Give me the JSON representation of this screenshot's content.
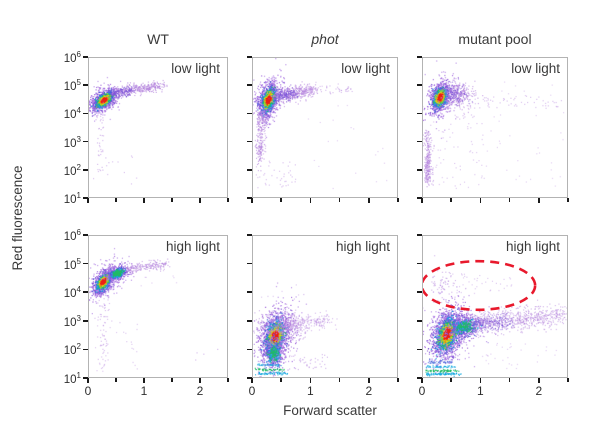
{
  "figure": {
    "xaxis_label": "Forward scatter",
    "yaxis_label": "Red fluorescence"
  },
  "chart_data": {
    "type": "scatter",
    "title": "",
    "xlabel": "Forward scatter",
    "ylabel": "Red fluorescence",
    "layout": {
      "rows": 2,
      "cols": 3,
      "grid": false,
      "legend": "none"
    },
    "xlim": [
      0,
      2.5
    ],
    "x_ticks": [
      0,
      0.5,
      1,
      1.5,
      2,
      2.5
    ],
    "x_tick_labeled": [
      0,
      1,
      2
    ],
    "ylog_limits": [
      1,
      6
    ],
    "y_tick_exponents": [
      6,
      5,
      4,
      3,
      2,
      1
    ],
    "col_titles": [
      {
        "text": "WT",
        "italic": false
      },
      {
        "text": "phot",
        "italic": true
      },
      {
        "text": "mutant pool",
        "italic": false
      }
    ],
    "row_labels": [
      "low light",
      "high light"
    ],
    "sparse_color": "#b585dd",
    "density_layers": [
      {
        "color": "#c09aea",
        "scale": 1.6,
        "frac": 0.06
      },
      {
        "color": "#a873e0",
        "scale": 1.0,
        "frac": 0.26
      },
      {
        "color": "#7e57d9",
        "scale": 0.8,
        "frac": 0.12
      },
      {
        "color": "#3f63d8",
        "scale": 0.65,
        "frac": 0.1
      },
      {
        "color": "#16aadf",
        "scale": 0.53,
        "frac": 0.1
      },
      {
        "color": "#21bb66",
        "scale": 0.43,
        "frac": 0.1
      },
      {
        "color": "#a8d62a",
        "scale": 0.345,
        "frac": 0.08
      },
      {
        "color": "#f2cf11",
        "scale": 0.275,
        "frac": 0.06
      },
      {
        "color": "#f58414",
        "scale": 0.215,
        "frac": 0.06
      },
      {
        "color": "#ec2218",
        "scale": 0.155,
        "frac": 0.16
      }
    ],
    "panels": [
      {
        "row": 0,
        "col": 0,
        "condition": "low light",
        "genotype": "WT",
        "populations": [
          {
            "type": "dense",
            "x": 0.27,
            "y": 4.48,
            "major": 8,
            "minor": 4.4,
            "rot": 38,
            "n": 2600
          },
          {
            "type": "band",
            "x0": 0.5,
            "y0": 4.78,
            "x1": 1.32,
            "y1": 5.0,
            "spread": 3,
            "n": 330,
            "alpha": 0.65
          },
          {
            "type": "band",
            "x0": 0.42,
            "y0": 4.7,
            "x1": 0.75,
            "y1": 4.85,
            "spread": 3,
            "n": 140,
            "color": "#7e57d9",
            "alpha": 0.6
          },
          {
            "type": "gauss",
            "x": 0.2,
            "y": 3.3,
            "sx": 2,
            "sy": 22,
            "n": 45,
            "alpha": 0.5
          },
          {
            "type": "uniform",
            "x0": 0.08,
            "x1": 0.9,
            "y0": 1.35,
            "y1": 2.6,
            "n": 14,
            "alpha": 0.45
          }
        ]
      },
      {
        "row": 0,
        "col": 1,
        "condition": "low light",
        "genotype": "phot",
        "populations": [
          {
            "type": "dense",
            "x": 0.27,
            "y": 4.5,
            "major": 9.5,
            "minor": 5,
            "rot": 72,
            "n": 2700
          },
          {
            "type": "band",
            "x0": 0.4,
            "y0": 4.62,
            "x1": 1.05,
            "y1": 4.85,
            "spread": 4.5,
            "n": 420,
            "alpha": 0.6
          },
          {
            "type": "band",
            "x0": 0.38,
            "y0": 4.58,
            "x1": 0.72,
            "y1": 4.75,
            "spread": 3.5,
            "n": 160,
            "color": "#7e57d9",
            "alpha": 0.55
          },
          {
            "type": "band",
            "x0": 1.0,
            "y0": 4.85,
            "x1": 1.7,
            "y1": 4.9,
            "spread": 3,
            "n": 45,
            "alpha": 0.45
          },
          {
            "type": "band",
            "x0": 0.16,
            "y0": 4.1,
            "x1": 0.13,
            "y1": 2.5,
            "spread": 2.2,
            "n": 130,
            "alpha": 0.5
          },
          {
            "type": "gauss",
            "x": 0.15,
            "y": 3.75,
            "sx": 2.5,
            "sy": 6,
            "n": 60,
            "alpha": 0.6
          },
          {
            "type": "gauss",
            "x": 0.11,
            "y": 2.6,
            "sx": 2,
            "sy": 8,
            "n": 70,
            "alpha": 0.6
          },
          {
            "type": "uniform",
            "x0": 0.05,
            "x1": 0.75,
            "y0": 1.3,
            "y1": 2.3,
            "n": 40,
            "alpha": 0.45
          },
          {
            "type": "uniform",
            "x0": 0.8,
            "x1": 2.4,
            "y0": 1.3,
            "y1": 4.3,
            "n": 20,
            "alpha": 0.35
          }
        ]
      },
      {
        "row": 0,
        "col": 2,
        "condition": "low light",
        "genotype": "mutant pool",
        "populations": [
          {
            "type": "dense",
            "x": 0.3,
            "y": 4.58,
            "major": 8.5,
            "minor": 5,
            "rot": 72,
            "n": 2500
          },
          {
            "type": "gauss",
            "x": 0.6,
            "y": 4.7,
            "sx": 8,
            "sy": 6,
            "n": 300,
            "alpha": 0.6
          },
          {
            "type": "gauss",
            "x": 0.55,
            "y": 4.72,
            "sx": 6,
            "sy": 5,
            "n": 110,
            "color": "#7e57d9",
            "alpha": 0.55
          },
          {
            "type": "band",
            "x0": 0.75,
            "y0": 4.5,
            "x1": 2.45,
            "y1": 4.35,
            "spread": 5,
            "n": 60,
            "alpha": 0.45
          },
          {
            "type": "band",
            "x0": 0.08,
            "y0": 3.35,
            "x1": 0.08,
            "y1": 1.5,
            "spread": 1.8,
            "n": 160,
            "alpha": 0.55
          },
          {
            "type": "gauss",
            "x": 0.09,
            "y": 2.1,
            "sx": 1.8,
            "sy": 9,
            "n": 110,
            "alpha": 0.6
          },
          {
            "type": "uniform",
            "x0": 0.1,
            "x1": 1.1,
            "y0": 1.3,
            "y1": 3.7,
            "n": 70,
            "alpha": 0.4
          },
          {
            "type": "uniform",
            "x0": 1.1,
            "x1": 2.45,
            "y0": 1.35,
            "y1": 4.1,
            "n": 28,
            "alpha": 0.35
          },
          {
            "type": "uniform",
            "x0": 1.3,
            "x1": 2.45,
            "y0": 4.6,
            "y1": 5.4,
            "n": 10,
            "alpha": 0.35
          },
          {
            "type": "uniform",
            "x0": 0.35,
            "x1": 0.9,
            "y0": 3.8,
            "y1": 4.3,
            "n": 25,
            "alpha": 0.45
          }
        ]
      },
      {
        "row": 1,
        "col": 0,
        "condition": "high light",
        "genotype": "WT",
        "populations": [
          {
            "type": "dense",
            "x": 0.26,
            "y": 4.38,
            "major": 8,
            "minor": 4.5,
            "rot": 55,
            "n": 2400
          },
          {
            "type": "dense",
            "x": 0.52,
            "y": 4.68,
            "major": 6,
            "minor": 3.5,
            "rot": 20,
            "n": 800,
            "maxLayer": 6
          },
          {
            "type": "band",
            "x0": 0.7,
            "y0": 4.85,
            "x1": 1.42,
            "y1": 5.0,
            "spread": 3,
            "n": 200,
            "alpha": 0.55
          },
          {
            "type": "band",
            "x0": 0.24,
            "y0": 4.0,
            "x1": 0.3,
            "y1": 1.35,
            "spread": 3,
            "n": 70,
            "alpha": 0.45
          },
          {
            "type": "uniform",
            "x0": 0.05,
            "x1": 0.9,
            "y0": 1.2,
            "y1": 3.0,
            "n": 26,
            "alpha": 0.4
          },
          {
            "type": "uniform",
            "x0": 1.9,
            "x1": 2.35,
            "y0": 1.5,
            "y1": 2.1,
            "n": 4,
            "alpha": 0.5
          },
          {
            "type": "uniform",
            "x0": 0.9,
            "x1": 1.6,
            "y0": 4.2,
            "y1": 4.8,
            "n": 8,
            "alpha": 0.35
          }
        ]
      },
      {
        "row": 1,
        "col": 1,
        "condition": "high light",
        "genotype": "phot",
        "populations": [
          {
            "type": "dense",
            "x": 0.38,
            "y": 2.45,
            "major": 13,
            "minor": 7.5,
            "rot": 75,
            "n": 3200
          },
          {
            "type": "dense",
            "x": 0.36,
            "y": 1.85,
            "major": 9,
            "minor": 6,
            "rot": 85,
            "n": 650,
            "maxLayer": 6
          },
          {
            "type": "gauss",
            "x": 0.55,
            "y": 2.8,
            "sx": 11,
            "sy": 8,
            "n": 420,
            "alpha": 0.5
          },
          {
            "type": "band",
            "x0": 0.6,
            "y0": 2.85,
            "x1": 1.3,
            "y1": 3.0,
            "spread": 5,
            "n": 180,
            "alpha": 0.45
          },
          {
            "type": "band",
            "x0": 0.06,
            "y0": 1.12,
            "x1": 0.6,
            "y1": 1.12,
            "spread": 0.8,
            "n": 60,
            "color": "#16aadf",
            "alpha": 0.8
          },
          {
            "type": "band",
            "x0": 0.06,
            "y0": 1.26,
            "x1": 0.55,
            "y1": 1.26,
            "spread": 0.8,
            "n": 50,
            "color": "#21bb66",
            "alpha": 0.8
          },
          {
            "type": "band",
            "x0": 0.06,
            "y0": 1.42,
            "x1": 0.5,
            "y1": 1.42,
            "spread": 0.8,
            "n": 40,
            "color": "#16aadf",
            "alpha": 0.7
          },
          {
            "type": "uniform",
            "x0": 0.1,
            "x1": 0.8,
            "y0": 3.3,
            "y1": 4.4,
            "n": 10,
            "alpha": 0.4
          },
          {
            "type": "uniform",
            "x0": 0.1,
            "x1": 1.3,
            "y0": 1.2,
            "y1": 1.8,
            "n": 60,
            "alpha": 0.5
          }
        ]
      },
      {
        "row": 1,
        "col": 2,
        "condition": "high light",
        "genotype": "mutant pool",
        "populations": [
          {
            "type": "dense",
            "x": 0.42,
            "y": 2.52,
            "major": 14,
            "minor": 8,
            "rot": 72,
            "n": 3400
          },
          {
            "type": "dense",
            "x": 0.72,
            "y": 2.78,
            "major": 10,
            "minor": 6,
            "rot": 12,
            "n": 850,
            "maxLayer": 6
          },
          {
            "type": "band",
            "x0": 0.85,
            "y0": 2.9,
            "x1": 2.45,
            "y1": 3.2,
            "spread": 7,
            "n": 700,
            "alpha": 0.5
          },
          {
            "type": "band",
            "x0": 0.8,
            "y0": 2.82,
            "x1": 1.5,
            "y1": 2.98,
            "spread": 5,
            "n": 200,
            "color": "#7e57d9",
            "alpha": 0.5
          },
          {
            "type": "gauss",
            "x": 0.33,
            "y": 4.3,
            "sx": 7,
            "sy": 9,
            "n": 60,
            "alpha": 0.5
          },
          {
            "type": "uniform",
            "x0": 0.5,
            "x1": 1.55,
            "y0": 3.95,
            "y1": 4.7,
            "n": 40,
            "alpha": 0.4
          },
          {
            "type": "band",
            "x0": 0.05,
            "y0": 1.1,
            "x1": 0.65,
            "y1": 1.1,
            "spread": 0.8,
            "n": 80,
            "color": "#16aadf",
            "alpha": 0.85
          },
          {
            "type": "band",
            "x0": 0.05,
            "y0": 1.22,
            "x1": 0.6,
            "y1": 1.22,
            "spread": 0.8,
            "n": 65,
            "color": "#21bb66",
            "alpha": 0.85
          },
          {
            "type": "band",
            "x0": 0.05,
            "y0": 1.36,
            "x1": 0.55,
            "y1": 1.36,
            "spread": 0.8,
            "n": 50,
            "color": "#16aadf",
            "alpha": 0.7
          },
          {
            "type": "band",
            "x0": 0.05,
            "y0": 1.52,
            "x1": 0.5,
            "y1": 1.52,
            "spread": 1.0,
            "n": 45,
            "color": "#3f63d8",
            "alpha": 0.6
          },
          {
            "type": "uniform",
            "x0": 1.0,
            "x1": 2.45,
            "y0": 1.3,
            "y1": 2.2,
            "n": 30,
            "alpha": 0.35
          }
        ]
      }
    ],
    "annotation_ellipse": {
      "panel_index": 5,
      "cx_fsc": 0.95,
      "cy_log": 4.27,
      "rx_fsc": 0.97,
      "ry_log": 0.85,
      "color": "#e8192c",
      "style": "dashed"
    }
  }
}
